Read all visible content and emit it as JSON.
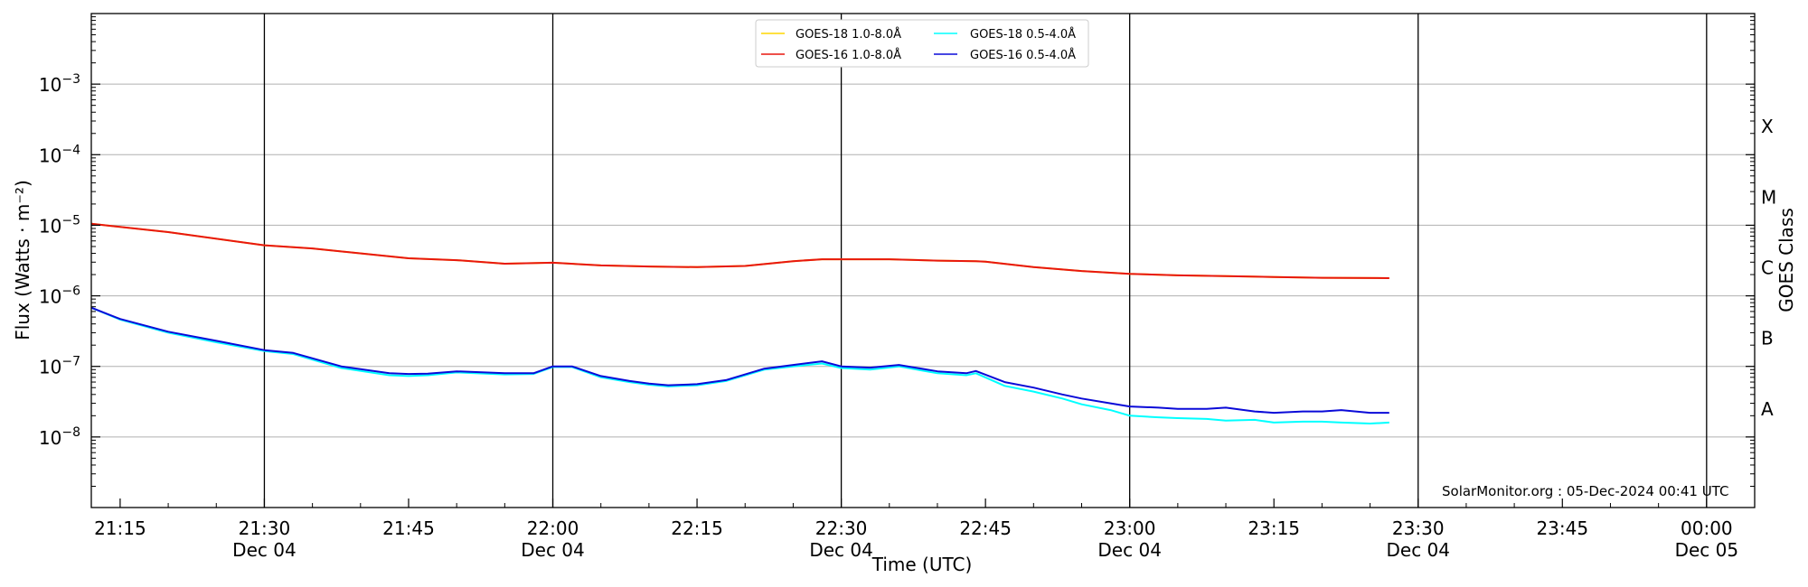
{
  "chart_data": {
    "type": "line",
    "ylabel": "Flux (Watts · m⁻²)",
    "xlabel": "Time (UTC)",
    "right_label": "GOES Class",
    "credit": "SolarMonitor.org : 05-Dec-2024 00:41 UTC",
    "y_scale": "log",
    "ylim": [
      1e-09,
      0.01
    ],
    "xlim": [
      "2024-12-04 21:12",
      "2024-12-05 00:05"
    ],
    "grid": "horizontal at decades",
    "legend_position": "top-center",
    "y_ticks": [
      {
        "value": 0.001,
        "base": "10",
        "exp": "−3"
      },
      {
        "value": 0.0001,
        "base": "10",
        "exp": "−4"
      },
      {
        "value": 1e-05,
        "base": "10",
        "exp": "−5"
      },
      {
        "value": 1e-06,
        "base": "10",
        "exp": "−6"
      },
      {
        "value": 1e-07,
        "base": "10",
        "exp": "−7"
      },
      {
        "value": 1e-08,
        "base": "10",
        "exp": "−8"
      }
    ],
    "x_ticks": [
      {
        "time": "21:15",
        "date": ""
      },
      {
        "time": "21:30",
        "date": "Dec 04"
      },
      {
        "time": "21:45",
        "date": ""
      },
      {
        "time": "22:00",
        "date": "Dec 04"
      },
      {
        "time": "22:15",
        "date": ""
      },
      {
        "time": "22:30",
        "date": "Dec 04"
      },
      {
        "time": "22:45",
        "date": ""
      },
      {
        "time": "23:00",
        "date": "Dec 04"
      },
      {
        "time": "23:15",
        "date": ""
      },
      {
        "time": "23:30",
        "date": "Dec 04"
      },
      {
        "time": "23:45",
        "date": ""
      },
      {
        "time": "00:00",
        "date": "Dec 05"
      }
    ],
    "vlines": [
      "21:30",
      "22:00",
      "22:30",
      "23:00",
      "23:30",
      "00:00"
    ],
    "class_labels": [
      {
        "label": "A",
        "flux": 2.5e-08
      },
      {
        "label": "B",
        "flux": 2.5e-07
      },
      {
        "label": "C",
        "flux": 2.5e-06
      },
      {
        "label": "M",
        "flux": 2.5e-05
      },
      {
        "label": "X",
        "flux": 0.00025
      }
    ],
    "series": [
      {
        "name": "GOES-18 1.0-8.0Å",
        "color": "#FFD700",
        "x": [
          "21:12",
          "21:20",
          "21:30",
          "21:35",
          "21:45",
          "21:50",
          "21:55",
          "22:00",
          "22:05",
          "22:10",
          "22:15",
          "22:20",
          "22:25",
          "22:28",
          "22:35",
          "22:40",
          "22:44",
          "22:45",
          "22:50",
          "22:55",
          "23:00",
          "23:05",
          "23:10",
          "23:15",
          "23:20",
          "23:27"
        ],
        "y": [
          1.05e-05,
          8e-06,
          5.2e-06,
          4.7e-06,
          3.4e-06,
          3.2e-06,
          2.85e-06,
          2.95e-06,
          2.7e-06,
          2.6e-06,
          2.55e-06,
          2.65e-06,
          3.1e-06,
          3.3e-06,
          3.3e-06,
          3.15e-06,
          3.1e-06,
          3.05e-06,
          2.55e-06,
          2.25e-06,
          2.05e-06,
          1.95e-06,
          1.9e-06,
          1.85e-06,
          1.8e-06,
          1.78e-06
        ]
      },
      {
        "name": "GOES-16 1.0-8.0Å",
        "color": "#E8170F",
        "x": [
          "21:12",
          "21:20",
          "21:30",
          "21:35",
          "21:45",
          "21:50",
          "21:55",
          "22:00",
          "22:05",
          "22:10",
          "22:15",
          "22:20",
          "22:25",
          "22:28",
          "22:35",
          "22:40",
          "22:44",
          "22:45",
          "22:50",
          "22:55",
          "23:00",
          "23:05",
          "23:10",
          "23:15",
          "23:20",
          "23:27"
        ],
        "y": [
          1.05e-05,
          8e-06,
          5.2e-06,
          4.7e-06,
          3.4e-06,
          3.2e-06,
          2.85e-06,
          2.95e-06,
          2.7e-06,
          2.6e-06,
          2.55e-06,
          2.65e-06,
          3.1e-06,
          3.3e-06,
          3.3e-06,
          3.15e-06,
          3.1e-06,
          3.05e-06,
          2.55e-06,
          2.25e-06,
          2.05e-06,
          1.95e-06,
          1.9e-06,
          1.85e-06,
          1.8e-06,
          1.78e-06
        ]
      },
      {
        "name": "GOES-18 0.5-4.0Å",
        "color": "#00FFFF",
        "x": [
          "21:12",
          "21:15",
          "21:20",
          "21:25",
          "21:30",
          "21:33",
          "21:38",
          "21:43",
          "21:45",
          "21:47",
          "21:50",
          "21:55",
          "21:58",
          "22:00",
          "22:02",
          "22:05",
          "22:08",
          "22:10",
          "22:12",
          "22:15",
          "22:18",
          "22:22",
          "22:25",
          "22:28",
          "22:30",
          "22:33",
          "22:36",
          "22:40",
          "22:43",
          "22:44",
          "22:47",
          "22:50",
          "22:53",
          "22:55",
          "22:58",
          "23:00",
          "23:03",
          "23:05",
          "23:08",
          "23:10",
          "23:13",
          "23:15",
          "23:18",
          "23:20",
          "23:22",
          "23:25",
          "23:27"
        ],
        "y": [
          6.8e-07,
          4.6e-07,
          3e-07,
          2.2e-07,
          1.65e-07,
          1.5e-07,
          9.5e-08,
          7.5e-08,
          7.3e-08,
          7.5e-08,
          8.2e-08,
          7.7e-08,
          7.8e-08,
          9.8e-08,
          9.8e-08,
          7e-08,
          6e-08,
          5.5e-08,
          5.2e-08,
          5.4e-08,
          6.2e-08,
          9e-08,
          1e-07,
          1.1e-07,
          9.5e-08,
          9e-08,
          1e-07,
          8e-08,
          7.5e-08,
          8e-08,
          5.3e-08,
          4.4e-08,
          3.5e-08,
          2.9e-08,
          2.4e-08,
          2e-08,
          1.9e-08,
          1.85e-08,
          1.8e-08,
          1.7e-08,
          1.75e-08,
          1.6e-08,
          1.65e-08,
          1.65e-08,
          1.6e-08,
          1.55e-08,
          1.6e-08
        ]
      },
      {
        "name": "GOES-16 0.5-4.0Å",
        "color": "#0A0AD8",
        "x": [
          "21:12",
          "21:15",
          "21:20",
          "21:25",
          "21:30",
          "21:33",
          "21:38",
          "21:43",
          "21:45",
          "21:47",
          "21:50",
          "21:55",
          "21:58",
          "22:00",
          "22:02",
          "22:05",
          "22:08",
          "22:10",
          "22:12",
          "22:15",
          "22:18",
          "22:22",
          "22:25",
          "22:28",
          "22:30",
          "22:33",
          "22:36",
          "22:40",
          "22:43",
          "22:44",
          "22:47",
          "22:50",
          "22:53",
          "22:55",
          "22:58",
          "23:00",
          "23:03",
          "23:05",
          "23:08",
          "23:10",
          "23:13",
          "23:15",
          "23:18",
          "23:20",
          "23:22",
          "23:25",
          "23:27"
        ],
        "y": [
          6.8e-07,
          4.7e-07,
          3.1e-07,
          2.3e-07,
          1.7e-07,
          1.55e-07,
          1e-07,
          8e-08,
          7.8e-08,
          7.9e-08,
          8.5e-08,
          8e-08,
          8e-08,
          1e-07,
          1e-07,
          7.3e-08,
          6.2e-08,
          5.7e-08,
          5.4e-08,
          5.6e-08,
          6.4e-08,
          9.3e-08,
          1.05e-07,
          1.18e-07,
          1e-07,
          9.6e-08,
          1.05e-07,
          8.5e-08,
          8e-08,
          8.6e-08,
          6e-08,
          5e-08,
          4e-08,
          3.5e-08,
          3e-08,
          2.7e-08,
          2.6e-08,
          2.5e-08,
          2.5e-08,
          2.6e-08,
          2.3e-08,
          2.2e-08,
          2.3e-08,
          2.3e-08,
          2.4e-08,
          2.2e-08,
          2.2e-08
        ]
      }
    ]
  }
}
